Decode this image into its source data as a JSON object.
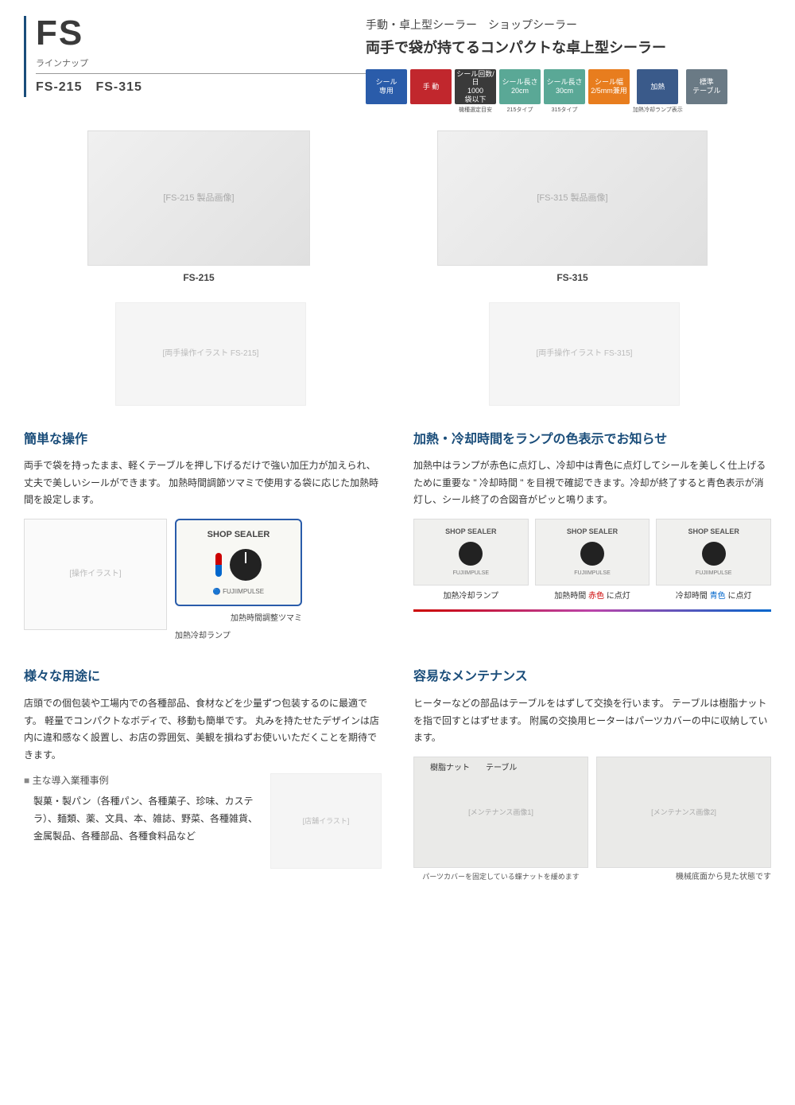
{
  "header": {
    "product_code": "FS",
    "lineup_label": "ラインナップ",
    "lineup_models": "FS-215　FS-315",
    "subtitle": "手動・卓上型シーラー　ショップシーラー",
    "main_title": "両手で袋が持てるコンパクトな卓上型シーラー"
  },
  "badges": [
    {
      "text": "シール\n専用",
      "color": "#2a5caa",
      "sub": ""
    },
    {
      "text": "手 動",
      "color": "#c1272d",
      "sub": ""
    },
    {
      "text": "シール回数/日\n1000\n袋以下",
      "color": "#3a3a3a",
      "sub": "機種選定目安"
    },
    {
      "text": "シール長さ\n20cm",
      "color": "#5aa896",
      "sub": "215タイプ"
    },
    {
      "text": "シール長さ\n30cm",
      "color": "#5aa896",
      "sub": "315タイプ"
    },
    {
      "text": "シール幅\n2/5mm兼用",
      "color": "#e87d1e",
      "sub": ""
    },
    {
      "text": "加熱",
      "color": "#3a5a8a",
      "sub": "加熱冷却ランプ表示"
    },
    {
      "text": "標準\nテーブル",
      "color": "#6a7a85",
      "sub": ""
    }
  ],
  "products": [
    {
      "model": "FS-215",
      "alt": "[FS-215 製品画像]"
    },
    {
      "model": "FS-315",
      "alt": "[FS-315 製品画像]"
    }
  ],
  "usage_images": [
    {
      "alt": "[両手操作イラスト FS-215]"
    },
    {
      "alt": "[両手操作イラスト FS-315]"
    }
  ],
  "section1": {
    "title": "簡単な操作",
    "text": "両手で袋を持ったまま、軽くテーブルを押し下げるだけで強い加圧力が加えられ、丈夫で美しいシールができます。\n加熱時間調節ツマミで使用する袋に応じた加熱時間を設定します。",
    "diagram_alt": "[操作イラスト]",
    "callout_title": "SHOP SEALER",
    "callout_brand": "🔵 FUJIIMPULSE",
    "annotation1": "加熱時間調整ツマミ",
    "annotation2": "加熱冷却ランプ"
  },
  "section2": {
    "title": "加熱・冷却時間をランプの色表示でお知らせ",
    "text": "加熱中はランプが赤色に点灯し、冷却中は青色に点灯してシールを美しく仕上げるために重要な \" 冷却時間 \" を目視で確認できます。冷却が終了すると青色表示が消灯し、シール終了の合図音がピッと鳴ります。",
    "lamp_title": "SHOP SEALER",
    "lamp_brand": "FUJIIMPULSE",
    "captions": [
      "加熱冷却ランプ",
      "加熱時間 赤色 に点灯",
      "冷却時間 青色 に点灯"
    ]
  },
  "section3": {
    "title": "様々な用途に",
    "text": "店頭での個包装や工場内での各種部品、食材などを少量ずつ包装するのに最適です。\n軽量でコンパクトなボディで、移動も簡単です。\n丸みを持たせたデザインは店内に違和感なく設置し、お店の雰囲気、美観を損ねずお使いいただくことを期待できます。",
    "sub_heading": "主な導入業種事例",
    "examples": "製菓・製パン（各種パン、各種菓子、珍味、カステラ）、麺類、薬、文具、本、雑誌、野菜、各種雑貨、金属製品、各種部品、各種食料品など",
    "illust_alt": "[店舗イラスト]"
  },
  "section4": {
    "title": "容易なメンテナンス",
    "text": "ヒーターなどの部品はテーブルをはずして交換を行います。\nテーブルは樹脂ナットを指で回すとはずせます。\n附属の交換用ヒーターはパーツカバーの中に収納しています。",
    "label1": "樹脂ナット",
    "label2": "テーブル",
    "note": "パーツカバーを固定している蝶ナットを緩めます",
    "caption": "機械底面から見た状態です",
    "img1_alt": "[メンテナンス画像1]",
    "img2_alt": "[メンテナンス画像2]"
  }
}
